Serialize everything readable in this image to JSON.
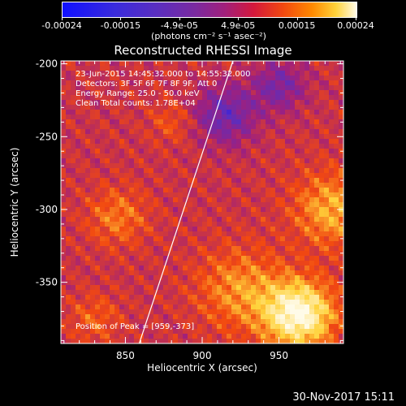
{
  "colorbar": {
    "ticks": [
      "-0.00024",
      "-0.00015",
      "-4.9e-05",
      "4.9e-05",
      "0.00015",
      "0.00024"
    ],
    "unit": "(photons cm⁻² s⁻¹ asec⁻²)",
    "colormap": [
      "#1010ff",
      "#5a2ec0",
      "#a0207c",
      "#f24810",
      "#ffd23a",
      "#fffbe8"
    ]
  },
  "annotations": {
    "time_range": "23-Jun-2015 14:45:32.000 to 14:55:32.000",
    "detectors": "Detectors: 3F 5F 6F 7F 8F 9F, Att 0",
    "energy": "Energy Range: 25.0 - 50.0 keV",
    "clean": "Clean    Total counts: 1.78E+04",
    "peak": "Position of Peak = [959,-373]"
  },
  "date_stamp": "30-Nov-2017 15:11",
  "chart_data": {
    "type": "heatmap",
    "title": "Reconstructed RHESSI Image",
    "xlabel": "Heliocentric X (arcsec)",
    "ylabel": "Heliocentric Y (arcsec)",
    "xlim": [
      808,
      992
    ],
    "ylim": [
      -392,
      -198
    ],
    "xticks": [
      850,
      900,
      950
    ],
    "yticks": [
      -200,
      -250,
      -300,
      -350
    ],
    "zlim": [
      -0.00024,
      0.00024
    ],
    "peak": [
      959,
      -373
    ],
    "limb_line": [
      [
        859,
        -392
      ],
      [
        920,
        -198
      ]
    ],
    "intensity_sources": [
      {
        "x": 963,
        "y": -372,
        "sigma": 16,
        "amplitude": 0.00024
      },
      {
        "x": 985,
        "y": -300,
        "sigma": 18,
        "amplitude": 0.00012
      },
      {
        "x": 925,
        "y": -355,
        "sigma": 20,
        "amplitude": 0.0001
      },
      {
        "x": 845,
        "y": -305,
        "sigma": 14,
        "amplitude": 8e-05
      },
      {
        "x": 830,
        "y": -375,
        "sigma": 12,
        "amplitude": 6e-05
      },
      {
        "x": 880,
        "y": -240,
        "sigma": 10,
        "amplitude": 5e-05
      },
      {
        "x": 915,
        "y": -235,
        "sigma": 14,
        "amplitude": -0.00012
      },
      {
        "x": 950,
        "y": -215,
        "sigma": 12,
        "amplitude": -0.0001
      }
    ]
  }
}
